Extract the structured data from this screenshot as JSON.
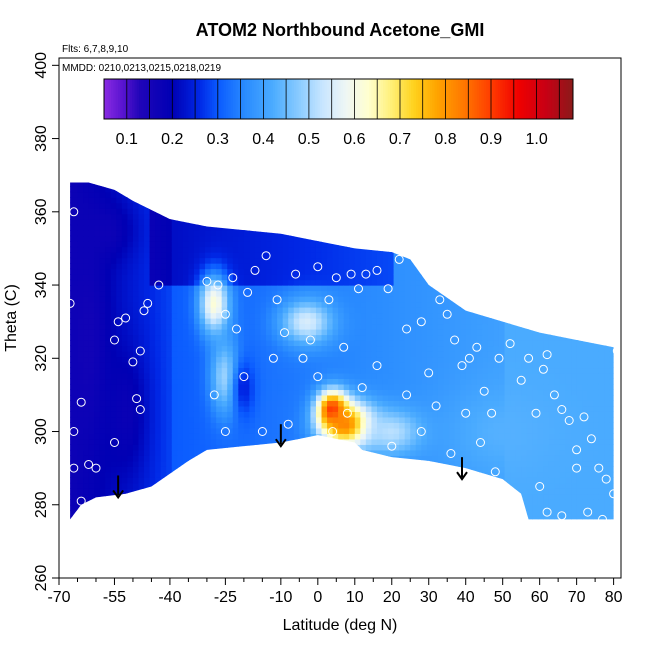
{
  "chart_data": {
    "type": "heatmap",
    "title": "ATOM2 Northbound Acetone_GMI",
    "annotations": {
      "flights": "Flts: 6,7,8,9,10",
      "dates": "MMDD: 0210,0213,0215,0218,0219"
    },
    "xlabel": "Latitude (deg N)",
    "ylabel": "Theta (C)",
    "xlim": [
      -70,
      82
    ],
    "ylim": [
      260,
      402
    ],
    "x_ticks": [
      -70,
      -55,
      -40,
      -25,
      -10,
      0,
      10,
      20,
      30,
      40,
      50,
      60,
      70,
      80
    ],
    "x_minor_ticks": [
      -65,
      -60,
      -50,
      -45,
      -35,
      -30,
      -20,
      -15,
      -5,
      5,
      15,
      25,
      35,
      45,
      55,
      65,
      75
    ],
    "y_ticks": [
      260,
      280,
      300,
      320,
      340,
      360,
      380,
      400
    ],
    "colorbar": {
      "range": [
        0.05,
        1.08
      ],
      "ticks": [
        0.1,
        0.2,
        0.3,
        0.4,
        0.5,
        0.6,
        0.7,
        0.8,
        0.9,
        1.0
      ],
      "tick_labels": [
        "0.1",
        "0.2",
        "0.3",
        "0.4",
        "0.5",
        "0.6",
        "0.7",
        "0.8",
        "0.9",
        "1.0"
      ]
    },
    "colormap": [
      [
        0.05,
        "#8a2be2"
      ],
      [
        0.09,
        "#5a14d0"
      ],
      [
        0.13,
        "#1f05b8"
      ],
      [
        0.2,
        "#0000b4"
      ],
      [
        0.26,
        "#0028e6"
      ],
      [
        0.3,
        "#0a5aff"
      ],
      [
        0.36,
        "#2a8cff"
      ],
      [
        0.42,
        "#4aabff"
      ],
      [
        0.48,
        "#8cccff"
      ],
      [
        0.53,
        "#c8e6ff"
      ],
      [
        0.58,
        "#eef6f5"
      ],
      [
        0.63,
        "#ffffd0"
      ],
      [
        0.68,
        "#fff07a"
      ],
      [
        0.73,
        "#ffd21e"
      ],
      [
        0.78,
        "#ffa500"
      ],
      [
        0.84,
        "#ff7800"
      ],
      [
        0.9,
        "#ff3c00"
      ],
      [
        0.96,
        "#f00000"
      ],
      [
        1.02,
        "#c80014"
      ],
      [
        1.08,
        "#8b1a1a"
      ]
    ],
    "upper_boundary": [
      [
        -67,
        368
      ],
      [
        -62,
        368
      ],
      [
        -55,
        366
      ],
      [
        -50,
        363
      ],
      [
        -40,
        358
      ],
      [
        -30,
        356
      ],
      [
        -20,
        355
      ],
      [
        -10,
        354
      ],
      [
        0,
        352
      ],
      [
        10,
        350
      ],
      [
        20,
        349
      ],
      [
        25,
        347
      ],
      [
        30,
        340
      ],
      [
        40,
        333
      ],
      [
        50,
        330
      ],
      [
        60,
        327
      ],
      [
        70,
        325
      ],
      [
        80,
        323
      ]
    ],
    "lower_boundary": [
      [
        -67,
        276
      ],
      [
        -64,
        280
      ],
      [
        -60,
        282
      ],
      [
        -52,
        283
      ],
      [
        -45,
        285
      ],
      [
        -35,
        292
      ],
      [
        -30,
        295
      ],
      [
        -20,
        296
      ],
      [
        -10,
        297
      ],
      [
        -5,
        298
      ],
      [
        0,
        299
      ],
      [
        5,
        298
      ],
      [
        10,
        297
      ],
      [
        12,
        295
      ],
      [
        20,
        293
      ],
      [
        30,
        292
      ],
      [
        40,
        290
      ],
      [
        50,
        287
      ],
      [
        55,
        283
      ],
      [
        57,
        276
      ],
      [
        80,
        276
      ]
    ],
    "field_blobs": [
      {
        "lat": -62,
        "theta": 325,
        "value": 0.16,
        "sx": 5,
        "sy": 30
      },
      {
        "lat": -52,
        "theta": 305,
        "value": 0.18,
        "sx": 6,
        "sy": 18
      },
      {
        "lat": -58,
        "theta": 355,
        "value": 0.17,
        "sx": 8,
        "sy": 8
      },
      {
        "lat": -28,
        "theta": 335,
        "value": 0.62,
        "sx": 4,
        "sy": 8
      },
      {
        "lat": -25,
        "theta": 315,
        "value": 0.5,
        "sx": 4,
        "sy": 10
      },
      {
        "lat": -20,
        "theta": 312,
        "value": 0.25,
        "sx": 3,
        "sy": 8
      },
      {
        "lat": -3,
        "theta": 330,
        "value": 0.55,
        "sx": 7,
        "sy": 6
      },
      {
        "lat": 4,
        "theta": 306,
        "value": 0.95,
        "sx": 4,
        "sy": 5
      },
      {
        "lat": 8,
        "theta": 302,
        "value": 0.85,
        "sx": 7,
        "sy": 6
      },
      {
        "lat": 20,
        "theta": 300,
        "value": 0.52,
        "sx": 8,
        "sy": 6
      },
      {
        "lat": 50,
        "theta": 300,
        "value": 0.43,
        "sx": 15,
        "sy": 12
      }
    ],
    "aircraft_points": [
      [
        -67,
        335
      ],
      [
        -66,
        360
      ],
      [
        -66,
        300
      ],
      [
        -66,
        290
      ],
      [
        -64,
        308
      ],
      [
        -64,
        281
      ],
      [
        -62,
        291
      ],
      [
        -60,
        290
      ],
      [
        -55,
        325
      ],
      [
        -55,
        297
      ],
      [
        -54,
        330
      ],
      [
        -52,
        331
      ],
      [
        -50,
        319
      ],
      [
        -49,
        309
      ],
      [
        -48,
        306
      ],
      [
        -48,
        322
      ],
      [
        -47,
        333
      ],
      [
        -46,
        335
      ],
      [
        -43,
        340
      ],
      [
        -30,
        341
      ],
      [
        -27,
        340
      ],
      [
        -25,
        332
      ],
      [
        -23,
        342
      ],
      [
        -22,
        328
      ],
      [
        -19,
        338
      ],
      [
        -17,
        344
      ],
      [
        -14,
        348
      ],
      [
        -11,
        336
      ],
      [
        -9,
        327
      ],
      [
        -6,
        343
      ],
      [
        -2,
        325
      ],
      [
        0,
        345
      ],
      [
        3,
        336
      ],
      [
        5,
        342
      ],
      [
        7,
        323
      ],
      [
        9,
        343
      ],
      [
        11,
        339
      ],
      [
        13,
        343
      ],
      [
        16,
        344
      ],
      [
        19,
        339
      ],
      [
        22,
        347
      ],
      [
        24,
        328
      ],
      [
        28,
        330
      ],
      [
        30,
        316
      ],
      [
        33,
        336
      ],
      [
        35,
        332
      ],
      [
        37,
        325
      ],
      [
        39,
        318
      ],
      [
        41,
        320
      ],
      [
        43,
        323
      ],
      [
        45,
        311
      ],
      [
        47,
        305
      ],
      [
        49,
        320
      ],
      [
        52,
        324
      ],
      [
        55,
        314
      ],
      [
        57,
        320
      ],
      [
        59,
        305
      ],
      [
        61,
        317
      ],
      [
        62,
        321
      ],
      [
        64,
        310
      ],
      [
        66,
        306
      ],
      [
        68,
        303
      ],
      [
        70,
        295
      ],
      [
        72,
        304
      ],
      [
        74,
        298
      ],
      [
        76,
        290
      ],
      [
        78,
        287
      ],
      [
        80,
        283
      ],
      [
        81,
        322
      ],
      [
        60,
        285
      ],
      [
        62,
        278
      ],
      [
        66,
        277
      ],
      [
        70,
        290
      ],
      [
        73,
        278
      ],
      [
        77,
        276
      ],
      [
        -28,
        310
      ],
      [
        -25,
        300
      ],
      [
        -20,
        315
      ],
      [
        -15,
        300
      ],
      [
        -12,
        320
      ],
      [
        -8,
        302
      ],
      [
        -4,
        320
      ],
      [
        0,
        315
      ],
      [
        4,
        300
      ],
      [
        8,
        305
      ],
      [
        12,
        312
      ],
      [
        16,
        318
      ],
      [
        20,
        296
      ],
      [
        24,
        310
      ],
      [
        28,
        300
      ],
      [
        32,
        307
      ],
      [
        36,
        294
      ],
      [
        40,
        305
      ],
      [
        44,
        297
      ],
      [
        48,
        289
      ]
    ],
    "arrows": [
      {
        "lat": -54,
        "theta_top": 288,
        "theta_tip": 282
      },
      {
        "lat": -10,
        "theta_top": 302,
        "theta_tip": 296
      },
      {
        "lat": 39,
        "theta_top": 293,
        "theta_tip": 287
      }
    ]
  }
}
